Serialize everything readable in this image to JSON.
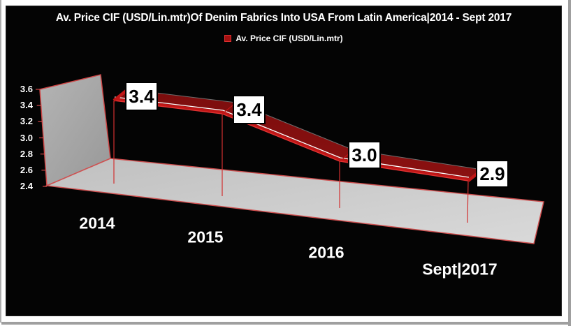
{
  "title": "Av. Price CIF (USD/Lin.mtr)Of Denim Fabrics Into USA From Latin America|2014 - Sept 2017",
  "legend": {
    "label": "Av. Price CIF (USD/Lin.mtr)",
    "marker_color": "#a31010",
    "marker_border": "#e03030",
    "position": "top-center"
  },
  "chart_data": {
    "type": "line",
    "style": "3d-ribbon",
    "title": "Av. Price CIF (USD/Lin.mtr)Of Denim Fabrics Into USA From Latin America|2014 - Sept 2017",
    "categories": [
      "2014",
      "2015",
      "2016",
      "Sept|2017"
    ],
    "series": [
      {
        "name": "Av. Price CIF (USD/Lin.mtr)",
        "values": [
          3.4,
          3.4,
          3.0,
          2.9
        ]
      }
    ],
    "point_labels": [
      "3.4",
      "3.4",
      "3.0",
      "2.9"
    ],
    "y_ticks": [
      "3.6",
      "3.4",
      "3.2",
      "3.0",
      "2.8",
      "2.6",
      "2.4"
    ],
    "ylim": [
      2.4,
      3.6
    ],
    "xlabel": "",
    "ylabel": "",
    "grid": false,
    "legend_position": "top",
    "colors": {
      "background": "#040404",
      "text": "#ffffff",
      "ribbon_top": "#8a1111",
      "ribbon_front": "#c01616",
      "ribbon_edge": "#e23333",
      "wall": "#a8a8a8",
      "floor": "#cccccc",
      "axis_line": "#cf4646",
      "drop_line": "#d23030",
      "label_box_bg": "#ffffff",
      "label_box_border": "#000000"
    }
  }
}
